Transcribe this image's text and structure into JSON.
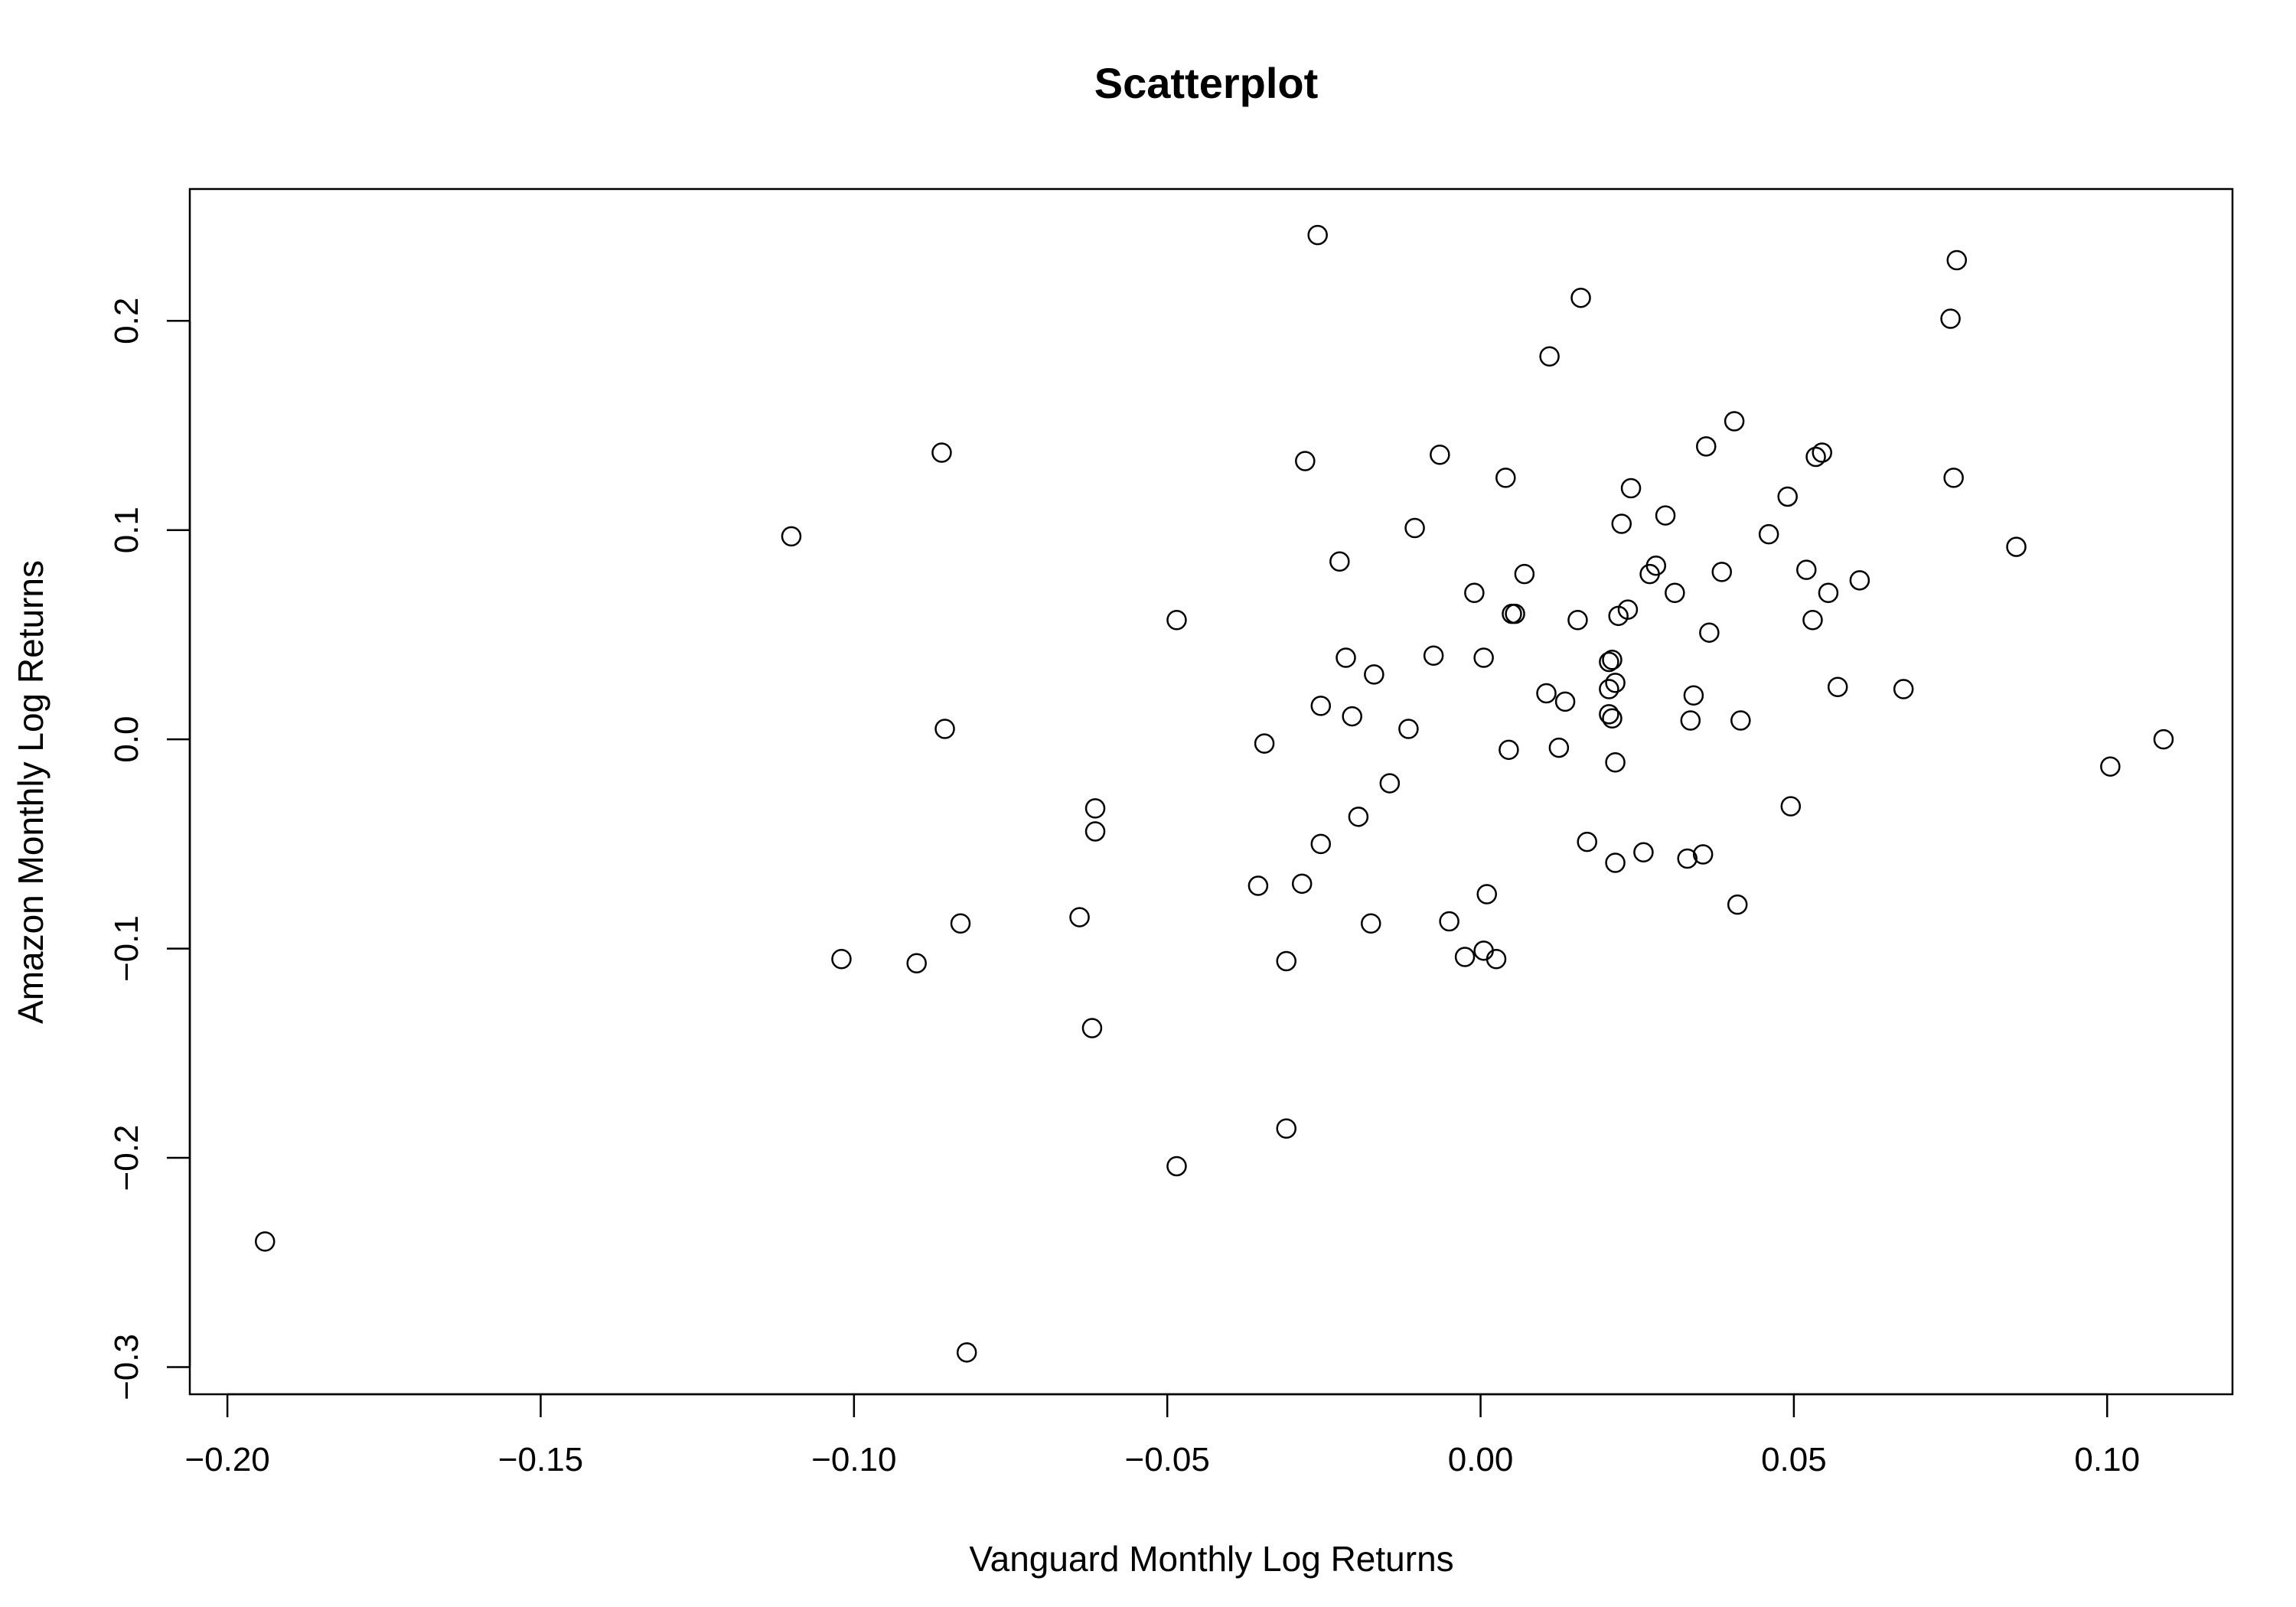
{
  "chart_data": {
    "type": "scatter",
    "title": "Scatterplot",
    "xlabel": "Vanguard Monthly Log Returns",
    "ylabel": "Amazon Monthly Log Returns",
    "xlim": [
      -0.206,
      0.12
    ],
    "ylim": [
      -0.313,
      0.263
    ],
    "xticks": [
      -0.2,
      -0.15,
      -0.1,
      -0.05,
      0.0,
      0.05,
      0.1
    ],
    "xtick_labels": [
      "−0.20",
      "−0.15",
      "−0.10",
      "−0.05",
      "0.00",
      "0.05",
      "0.10"
    ],
    "yticks": [
      -0.3,
      -0.2,
      -0.1,
      0.0,
      0.1,
      0.2
    ],
    "ytick_labels": [
      "−0.3",
      "−0.2",
      "−0.1",
      "0.0",
      "0.1",
      "0.2"
    ],
    "grid": false,
    "legend": "none",
    "marker": "open-circle",
    "point_color": "#000000",
    "x": [
      -0.194,
      -0.11,
      -0.102,
      -0.09,
      -0.086,
      -0.0855,
      -0.083,
      -0.082,
      -0.064,
      -0.062,
      -0.0615,
      -0.0615,
      -0.0485,
      -0.0485,
      -0.0355,
      -0.0345,
      -0.031,
      -0.031,
      -0.0285,
      -0.028,
      -0.026,
      -0.0255,
      -0.0255,
      -0.0225,
      -0.0215,
      -0.0205,
      -0.0195,
      -0.017,
      -0.0175,
      -0.0145,
      -0.0115,
      -0.0105,
      -0.0075,
      -0.0065,
      -0.005,
      -0.0025,
      -0.001,
      0.0005,
      0.0005,
      0.001,
      0.0025,
      0.004,
      0.0045,
      0.005,
      0.0055,
      0.007,
      0.0105,
      0.011,
      0.0125,
      0.0135,
      0.0155,
      0.016,
      0.017,
      0.0205,
      0.0205,
      0.0205,
      0.021,
      0.021,
      0.0215,
      0.0215,
      0.0215,
      0.022,
      0.0225,
      0.0235,
      0.024,
      0.026,
      0.027,
      0.028,
      0.0295,
      0.031,
      0.033,
      0.0335,
      0.034,
      0.0355,
      0.036,
      0.0365,
      0.0385,
      0.0405,
      0.041,
      0.0415,
      0.046,
      0.049,
      0.0495,
      0.052,
      0.053,
      0.0535,
      0.0545,
      0.0555,
      0.057,
      0.0605,
      0.0675,
      0.075,
      0.0755,
      0.076,
      0.0855,
      0.1005,
      0.109
    ],
    "y": [
      -0.24,
      0.097,
      -0.105,
      -0.107,
      0.137,
      0.005,
      -0.088,
      -0.293,
      -0.085,
      -0.138,
      -0.033,
      -0.044,
      0.057,
      -0.204,
      -0.07,
      -0.002,
      -0.106,
      -0.186,
      -0.069,
      0.133,
      0.241,
      0.016,
      -0.05,
      0.085,
      0.039,
      0.011,
      -0.037,
      0.031,
      -0.088,
      -0.021,
      0.005,
      0.101,
      0.04,
      0.136,
      -0.087,
      -0.104,
      0.07,
      -0.101,
      0.039,
      -0.074,
      -0.105,
      0.125,
      -0.005,
      0.06,
      0.06,
      0.079,
      0.022,
      0.183,
      -0.004,
      0.018,
      0.057,
      0.211,
      -0.049,
      0.024,
      0.037,
      0.012,
      0.038,
      0.01,
      0.027,
      -0.059,
      -0.011,
      0.059,
      0.103,
      0.062,
      0.12,
      -0.054,
      0.079,
      0.083,
      0.107,
      0.07,
      -0.057,
      0.009,
      0.021,
      -0.055,
      0.14,
      0.051,
      0.08,
      0.152,
      -0.079,
      0.009,
      0.098,
      0.116,
      -0.032,
      0.081,
      0.057,
      0.135,
      0.137,
      0.07,
      0.025,
      0.076,
      0.024,
      0.201,
      0.125,
      0.229,
      0.092,
      -0.013,
      0.0
    ]
  }
}
